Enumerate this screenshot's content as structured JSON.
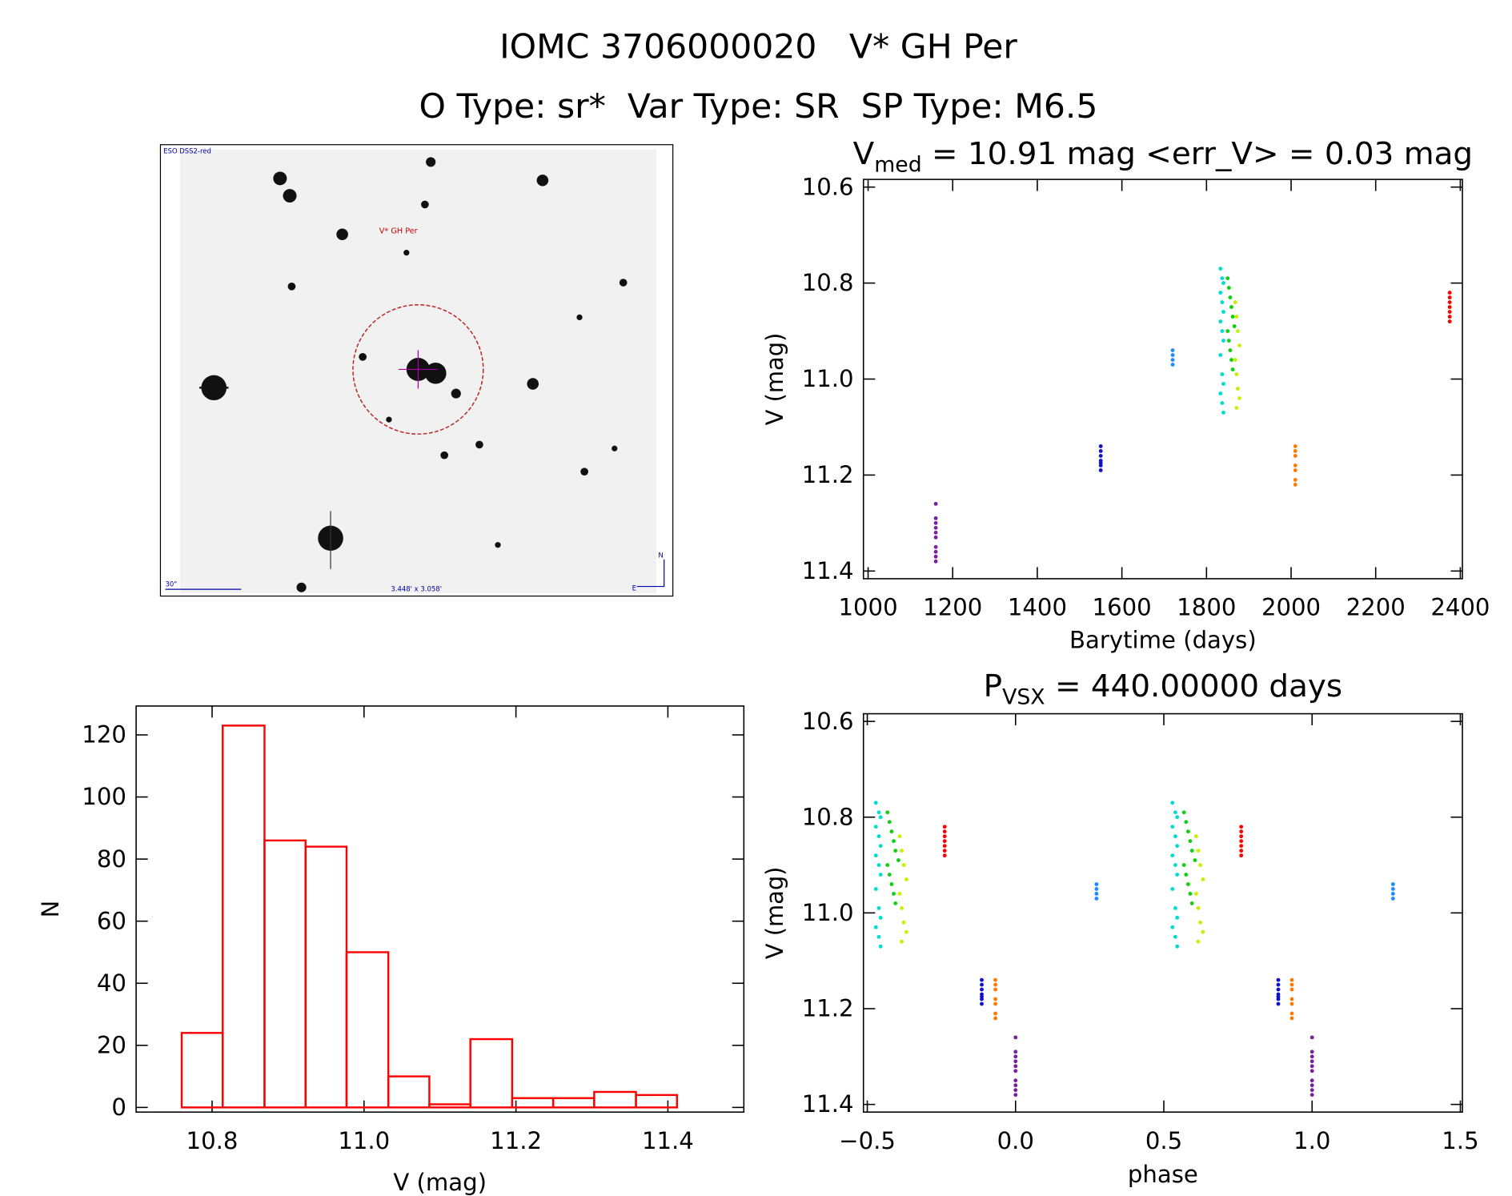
{
  "title": "IOMC 3706000020   V* GH Per",
  "subtitle": "O Type: sr*  Var Type: SR  SP Type: M6.5",
  "image": {
    "survey": "ESO DSS2-red",
    "target": "V* GH Per",
    "scale": "30\"",
    "field": "3.448' x 3.058'",
    "north": "N",
    "east": "E"
  },
  "chart_data": [
    {
      "type": "scatter",
      "title": "V",
      "title_sub": "med",
      "title_rest": " = 10.91 mag <err_V> = 0.03 mag",
      "x_label": "Barytime (days)",
      "y_label": "V (mag)",
      "xlim": [
        989,
        2405
      ],
      "ylim": [
        11.416,
        10.584
      ],
      "xticks": [
        1000,
        1200,
        1400,
        1600,
        1800,
        2000,
        2200,
        2400
      ],
      "yticks": [
        10.6,
        10.8,
        {
          "value": 11.0,
          "label": "11.0"
        },
        11.2,
        11.4
      ],
      "series": [
        {
          "color": "#7a1fa0",
          "x": [
            1160,
            1160,
            1160,
            1160,
            1160,
            1160,
            1160,
            1160,
            1160,
            1160
          ],
          "y": [
            11.26,
            11.29,
            11.3,
            11.31,
            11.32,
            11.33,
            11.35,
            11.36,
            11.37,
            11.38
          ]
        },
        {
          "color": "#1010d0",
          "x": [
            1550,
            1550,
            1550,
            1550,
            1550,
            1550,
            1550
          ],
          "y": [
            11.14,
            11.15,
            11.16,
            11.17,
            11.175,
            11.18,
            11.19
          ]
        },
        {
          "color": "#1e8cff",
          "x": [
            1720,
            1720,
            1720,
            1720
          ],
          "y": [
            10.94,
            10.95,
            10.96,
            10.97
          ]
        },
        {
          "color": "#00dcd0",
          "x": [
            1833,
            1837,
            1840,
            1833,
            1837,
            1840,
            1833,
            1837,
            1840,
            1833,
            1837,
            1840,
            1833,
            1837,
            1840
          ],
          "y": [
            10.77,
            10.79,
            10.8,
            10.82,
            10.84,
            10.86,
            10.88,
            10.9,
            10.92,
            10.95,
            10.99,
            11.01,
            11.03,
            11.05,
            11.07
          ]
        },
        {
          "color": "#10d010",
          "x": [
            1850,
            1853,
            1856,
            1859,
            1862,
            1866,
            1850,
            1853,
            1856,
            1859,
            1862
          ],
          "y": [
            10.79,
            10.81,
            10.83,
            10.85,
            10.87,
            10.89,
            10.9,
            10.92,
            10.94,
            10.96,
            10.98
          ]
        },
        {
          "color": "#c8f000",
          "x": [
            1868,
            1871,
            1874,
            1878,
            1868,
            1871,
            1874,
            1878,
            1871
          ],
          "y": [
            10.84,
            10.87,
            10.9,
            10.93,
            10.96,
            10.99,
            11.02,
            11.04,
            11.06
          ]
        },
        {
          "color": "#ff7a00",
          "x": [
            2010,
            2010,
            2010,
            2010,
            2010,
            2010,
            2010
          ],
          "y": [
            11.14,
            11.15,
            11.16,
            11.18,
            11.19,
            11.21,
            11.22
          ]
        },
        {
          "color": "#ff0000",
          "x": [
            2375,
            2375,
            2375,
            2375,
            2375,
            2375,
            2375
          ],
          "y": [
            10.82,
            10.83,
            10.84,
            10.85,
            10.86,
            10.87,
            10.88
          ]
        }
      ]
    },
    {
      "type": "scatter",
      "title": "P",
      "title_sub": "VSX",
      "title_rest": " = 440.00000 days",
      "x_label": "phase",
      "y_label": "V (mag)",
      "xlim": [
        -0.513,
        1.507
      ],
      "ylim": [
        11.416,
        10.584
      ],
      "xticks": [
        {
          "value": -0.5,
          "label": "−0.5"
        },
        {
          "value": 0,
          "label": "0.0"
        },
        0.5,
        {
          "value": 1,
          "label": "1.0"
        },
        1.5
      ],
      "yticks": [
        10.6,
        10.8,
        {
          "value": 11.0,
          "label": "11.0"
        },
        11.2,
        11.4
      ],
      "series": [
        {
          "color": "#7a1fa0",
          "x": [
            0,
            0,
            0,
            0,
            0,
            0,
            0,
            0,
            0,
            0
          ],
          "y": [
            11.26,
            11.29,
            11.3,
            11.31,
            11.32,
            11.33,
            11.35,
            11.36,
            11.37,
            11.38
          ]
        },
        {
          "color": "#7a1fa0",
          "x": [
            1,
            1,
            1,
            1,
            1,
            1,
            1,
            1,
            1,
            1
          ],
          "y": [
            11.26,
            11.29,
            11.3,
            11.31,
            11.32,
            11.33,
            11.35,
            11.36,
            11.37,
            11.38
          ]
        },
        {
          "color": "#1010d0",
          "x": [
            -0.114,
            -0.114,
            -0.114,
            -0.114,
            -0.114,
            -0.114,
            -0.114
          ],
          "y": [
            11.14,
            11.15,
            11.16,
            11.17,
            11.175,
            11.18,
            11.19
          ]
        },
        {
          "color": "#1010d0",
          "x": [
            0.886,
            0.886,
            0.886,
            0.886,
            0.886,
            0.886,
            0.886
          ],
          "y": [
            11.14,
            11.15,
            11.16,
            11.17,
            11.175,
            11.18,
            11.19
          ]
        },
        {
          "color": "#1e8cff",
          "x": [
            0.273,
            0.273,
            0.273,
            0.273
          ],
          "y": [
            10.94,
            10.95,
            10.96,
            10.97
          ]
        },
        {
          "color": "#1e8cff",
          "x": [
            1.273,
            1.273,
            1.273,
            1.273
          ],
          "y": [
            10.94,
            10.95,
            10.96,
            10.97
          ]
        },
        {
          "color": "#00dcd0",
          "x": [
            -0.471,
            -0.461,
            -0.455,
            -0.471,
            -0.461,
            -0.455,
            -0.471,
            -0.461,
            -0.455,
            -0.471,
            -0.461,
            -0.455,
            -0.471,
            -0.461,
            -0.455
          ],
          "y": [
            10.77,
            10.79,
            10.8,
            10.82,
            10.84,
            10.86,
            10.88,
            10.9,
            10.92,
            10.95,
            10.99,
            11.01,
            11.03,
            11.05,
            11.07
          ]
        },
        {
          "color": "#00dcd0",
          "x": [
            0.529,
            0.539,
            0.545,
            0.529,
            0.539,
            0.545,
            0.529,
            0.539,
            0.545,
            0.529,
            0.539,
            0.545,
            0.529,
            0.539,
            0.545
          ],
          "y": [
            10.77,
            10.79,
            10.8,
            10.82,
            10.84,
            10.86,
            10.88,
            10.9,
            10.92,
            10.95,
            10.99,
            11.01,
            11.03,
            11.05,
            11.07
          ]
        },
        {
          "color": "#10d010",
          "x": [
            -0.432,
            -0.425,
            -0.418,
            -0.411,
            -0.405,
            -0.395,
            -0.432,
            -0.425,
            -0.418,
            -0.411,
            -0.405
          ],
          "y": [
            10.79,
            10.81,
            10.83,
            10.85,
            10.87,
            10.89,
            10.9,
            10.92,
            10.94,
            10.96,
            10.98
          ]
        },
        {
          "color": "#10d010",
          "x": [
            0.568,
            0.575,
            0.582,
            0.589,
            0.595,
            0.605,
            0.568,
            0.575,
            0.582,
            0.589,
            0.595
          ],
          "y": [
            10.79,
            10.81,
            10.83,
            10.85,
            10.87,
            10.89,
            10.9,
            10.92,
            10.94,
            10.96,
            10.98
          ]
        },
        {
          "color": "#c8f000",
          "x": [
            -0.391,
            -0.384,
            -0.377,
            -0.368,
            -0.391,
            -0.384,
            -0.377,
            -0.368,
            -0.384
          ],
          "y": [
            10.84,
            10.87,
            10.9,
            10.93,
            10.96,
            10.99,
            11.02,
            11.04,
            11.06
          ]
        },
        {
          "color": "#c8f000",
          "x": [
            0.609,
            0.616,
            0.623,
            0.632,
            0.609,
            0.616,
            0.623,
            0.632,
            0.616
          ],
          "y": [
            10.84,
            10.87,
            10.9,
            10.93,
            10.96,
            10.99,
            11.02,
            11.04,
            11.06
          ]
        },
        {
          "color": "#ff7a00",
          "x": [
            -0.068,
            -0.068,
            -0.068,
            -0.068,
            -0.068,
            -0.068,
            -0.068
          ],
          "y": [
            11.14,
            11.15,
            11.16,
            11.18,
            11.19,
            11.21,
            11.22
          ]
        },
        {
          "color": "#ff7a00",
          "x": [
            0.932,
            0.932,
            0.932,
            0.932,
            0.932,
            0.932,
            0.932
          ],
          "y": [
            11.14,
            11.15,
            11.16,
            11.18,
            11.19,
            11.21,
            11.22
          ]
        },
        {
          "color": "#ff0000",
          "x": [
            -0.239,
            -0.239,
            -0.239,
            -0.239,
            -0.239,
            -0.239,
            -0.239
          ],
          "y": [
            10.82,
            10.83,
            10.84,
            10.85,
            10.86,
            10.87,
            10.88
          ]
        },
        {
          "color": "#ff0000",
          "x": [
            0.761,
            0.761,
            0.761,
            0.761,
            0.761,
            0.761,
            0.761
          ],
          "y": [
            10.82,
            10.83,
            10.84,
            10.85,
            10.86,
            10.87,
            10.88
          ]
        }
      ]
    },
    {
      "type": "histogram",
      "x_label": "V (mag)",
      "y_label": "N",
      "color": "#ff0000",
      "xlim": [
        10.7,
        11.5
      ],
      "ylim": [
        -1.5,
        129.3
      ],
      "xticks": [
        10.8,
        {
          "value": 11.0,
          "label": "11.0"
        },
        11.2,
        11.4
      ],
      "yticks": [
        0,
        20,
        40,
        60,
        80,
        100,
        120
      ],
      "bins": [
        10.76,
        10.814,
        10.869,
        10.923,
        10.977,
        11.032,
        11.086,
        11.14,
        11.195,
        11.249,
        11.303,
        11.358,
        11.412
      ],
      "counts": [
        24,
        123,
        86,
        84,
        50,
        10,
        1,
        22,
        3,
        3,
        5,
        4
      ]
    }
  ]
}
